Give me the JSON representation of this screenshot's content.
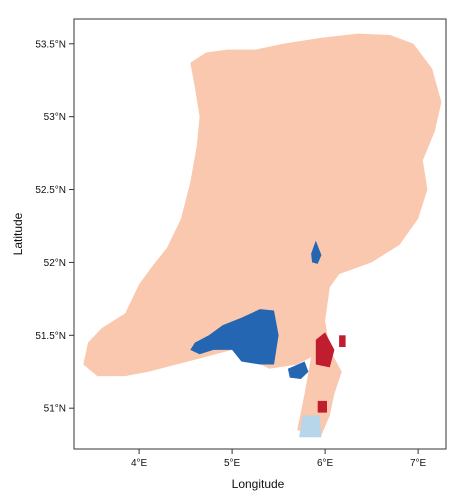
{
  "chart_data": {
    "type": "heatmap",
    "xlabel": "Longitude",
    "ylabel": "Latitude",
    "xlim": [
      3.3,
      7.3
    ],
    "ylim": [
      50.72,
      53.67
    ],
    "x_ticks": [
      {
        "value": 4,
        "label": "4°E"
      },
      {
        "value": 5,
        "label": "5°E"
      },
      {
        "value": 6,
        "label": "6°E"
      },
      {
        "value": 7,
        "label": "7°E"
      }
    ],
    "y_ticks": [
      {
        "value": 51,
        "label": "51°N"
      },
      {
        "value": 51.5,
        "label": "51.5°N"
      },
      {
        "value": 52,
        "label": "52°N"
      },
      {
        "value": 52.5,
        "label": "52.5°N"
      },
      {
        "value": 53,
        "label": "53°N"
      },
      {
        "value": 53.5,
        "label": "53.5°N"
      }
    ],
    "grid": false,
    "legend": "none",
    "colors": {
      "base": "#f9c8ae",
      "dark_blue": "#2466b2",
      "light_blue": "#b8d6ea",
      "dark_red": "#c01d2e"
    },
    "regions": [
      {
        "color": "base",
        "polygon": [
          [
            4.55,
            53.37
          ],
          [
            4.72,
            53.44
          ],
          [
            4.95,
            53.46
          ],
          [
            5.25,
            53.46
          ],
          [
            5.55,
            53.5
          ],
          [
            5.95,
            53.54
          ],
          [
            6.35,
            53.57
          ],
          [
            6.7,
            53.56
          ],
          [
            6.95,
            53.5
          ],
          [
            7.15,
            53.33
          ],
          [
            7.25,
            53.1
          ],
          [
            7.18,
            52.9
          ],
          [
            7.05,
            52.7
          ],
          [
            7.1,
            52.5
          ],
          [
            7.0,
            52.3
          ],
          [
            6.8,
            52.12
          ],
          [
            6.5,
            52.0
          ],
          [
            6.15,
            51.92
          ],
          [
            6.05,
            51.83
          ],
          [
            6.0,
            51.6
          ],
          [
            6.05,
            51.4
          ],
          [
            6.18,
            51.25
          ],
          [
            6.1,
            51.1
          ],
          [
            6.05,
            50.95
          ],
          [
            5.95,
            50.8
          ],
          [
            5.7,
            50.85
          ],
          [
            5.78,
            51.1
          ],
          [
            5.85,
            51.35
          ],
          [
            5.7,
            51.3
          ],
          [
            5.4,
            51.27
          ],
          [
            5.0,
            51.4
          ],
          [
            4.7,
            51.35
          ],
          [
            4.4,
            51.3
          ],
          [
            4.1,
            51.25
          ],
          [
            3.85,
            51.22
          ],
          [
            3.55,
            51.22
          ],
          [
            3.4,
            51.3
          ],
          [
            3.45,
            51.45
          ],
          [
            3.6,
            51.55
          ],
          [
            3.85,
            51.65
          ],
          [
            4.0,
            51.85
          ],
          [
            4.15,
            51.98
          ],
          [
            4.3,
            52.1
          ],
          [
            4.45,
            52.3
          ],
          [
            4.55,
            52.55
          ],
          [
            4.62,
            52.8
          ],
          [
            4.65,
            53.0
          ],
          [
            4.6,
            53.2
          ]
        ]
      },
      {
        "color": "dark_blue",
        "polygon": [
          [
            4.55,
            51.4
          ],
          [
            4.6,
            51.45
          ],
          [
            4.75,
            51.5
          ],
          [
            4.9,
            51.57
          ],
          [
            5.1,
            51.62
          ],
          [
            5.3,
            51.68
          ],
          [
            5.45,
            51.67
          ],
          [
            5.5,
            51.5
          ],
          [
            5.45,
            51.3
          ],
          [
            5.3,
            51.3
          ],
          [
            5.1,
            51.32
          ],
          [
            5.0,
            51.4
          ],
          [
            4.8,
            51.4
          ],
          [
            4.65,
            51.37
          ]
        ]
      },
      {
        "color": "dark_blue",
        "polygon": [
          [
            5.6,
            51.27
          ],
          [
            5.78,
            51.32
          ],
          [
            5.82,
            51.25
          ],
          [
            5.74,
            51.2
          ],
          [
            5.62,
            51.21
          ]
        ]
      },
      {
        "color": "dark_blue",
        "polygon": [
          [
            5.85,
            52.06
          ],
          [
            5.9,
            52.15
          ],
          [
            5.96,
            52.05
          ],
          [
            5.92,
            51.99
          ],
          [
            5.86,
            52.0
          ]
        ]
      },
      {
        "color": "light_blue",
        "polygon": [
          [
            5.76,
            50.95
          ],
          [
            5.94,
            50.95
          ],
          [
            5.96,
            50.8
          ],
          [
            5.72,
            50.8
          ]
        ]
      },
      {
        "color": "dark_red",
        "polygon": [
          [
            5.9,
            51.47
          ],
          [
            6.0,
            51.52
          ],
          [
            6.1,
            51.4
          ],
          [
            6.05,
            51.28
          ],
          [
            5.9,
            51.3
          ]
        ]
      },
      {
        "color": "dark_red",
        "polygon": [
          [
            6.15,
            51.5
          ],
          [
            6.22,
            51.5
          ],
          [
            6.22,
            51.42
          ],
          [
            6.15,
            51.42
          ]
        ]
      },
      {
        "color": "dark_red",
        "polygon": [
          [
            5.92,
            51.05
          ],
          [
            6.02,
            51.05
          ],
          [
            6.02,
            50.97
          ],
          [
            5.92,
            50.97
          ]
        ]
      }
    ]
  }
}
